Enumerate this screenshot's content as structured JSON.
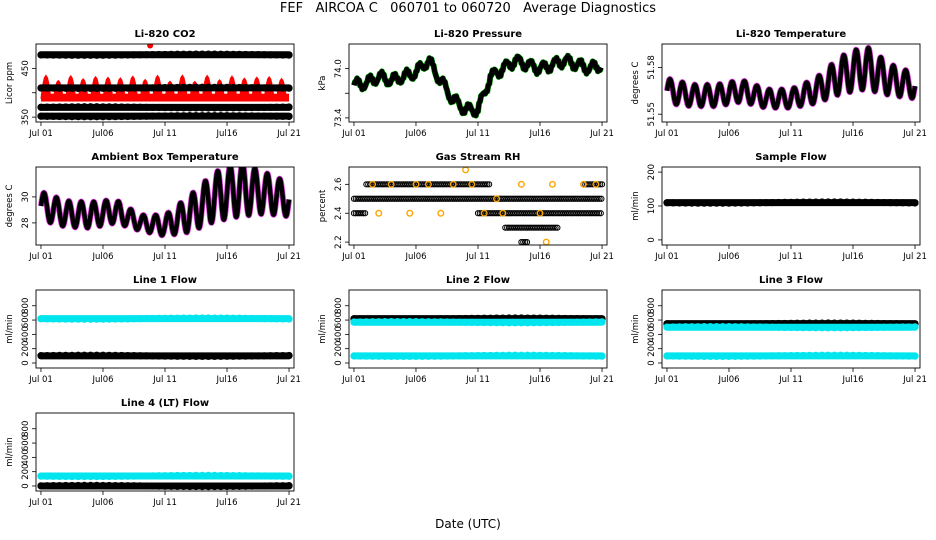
{
  "title": "FEF   AIRCOA C   060701 to 060720   Average Diagnostics",
  "xlabel": "Date (UTC)",
  "x_ticks": [
    "Jul 01",
    "Jul06",
    "Jul 11",
    "Jul16",
    "Jul 21"
  ],
  "x_tick_days": [
    1,
    6,
    11,
    16,
    21
  ],
  "colors": {
    "black": "#000000",
    "red": "#ff0000",
    "green": "#00aa00",
    "magenta": "#e040e0",
    "cyan": "#00e5ee",
    "orange": "#ffa500"
  },
  "chart_data": [
    {
      "type": "scatter",
      "title": "Li-820 CO2",
      "ylabel": "Licor ppm",
      "ylim": [
        340,
        500
      ],
      "yticks": [
        350,
        400,
        450
      ],
      "ytick_labels": [
        "350",
        "",
        "450"
      ],
      "series": [
        {
          "name": "calibration tank high",
          "color": "black",
          "kind": "flat",
          "level": 478
        },
        {
          "name": "sample",
          "color": "red",
          "kind": "diurnal",
          "base": 390,
          "amp": 40
        },
        {
          "name": "calibration tank mid",
          "color": "black",
          "kind": "flat",
          "level": 410
        },
        {
          "name": "calibration tank low",
          "color": "black",
          "kind": "flat",
          "level": 370
        },
        {
          "name": "calibration tank zero",
          "color": "black",
          "kind": "flat",
          "level": 352
        }
      ]
    },
    {
      "type": "line",
      "title": "Li-820 Pressure",
      "ylabel": "kPa",
      "ylim": [
        73.35,
        74.3
      ],
      "yticks": [
        73.4,
        73.7,
        74.0
      ],
      "ytick_labels": [
        "73.4",
        "",
        "74.0"
      ],
      "series": [
        {
          "name": "pressure",
          "color": "black",
          "kind": "trace",
          "accent": "green",
          "x": [
            1,
            2,
            3,
            4,
            5,
            6,
            7,
            8,
            9,
            10,
            11,
            12,
            13,
            14,
            15,
            16,
            17,
            18,
            19,
            20,
            21
          ],
          "y": [
            73.8,
            73.82,
            73.9,
            73.85,
            73.9,
            73.95,
            74.1,
            73.85,
            73.62,
            73.5,
            73.5,
            73.9,
            74.0,
            74.1,
            74.05,
            74.0,
            74.05,
            74.1,
            74.05,
            74.0,
            74.05
          ]
        }
      ]
    },
    {
      "type": "line",
      "title": "Li-820 Temperature",
      "ylabel": "degrees C",
      "ylim": [
        51.545,
        51.595
      ],
      "yticks": [
        51.55,
        51.58
      ],
      "ytick_labels": [
        "51.55",
        "51.58"
      ],
      "series": [
        {
          "name": "cell temperature",
          "color": "black",
          "kind": "osc",
          "accent": "magenta",
          "x": [
            1,
            3,
            5,
            7,
            9,
            11,
            13,
            15,
            17,
            19,
            21
          ],
          "y": [
            51.565,
            51.562,
            51.562,
            51.565,
            51.56,
            51.56,
            51.565,
            51.575,
            51.58,
            51.572,
            51.568
          ],
          "amp": [
            0.008,
            0.007,
            0.007,
            0.007,
            0.006,
            0.006,
            0.008,
            0.012,
            0.014,
            0.01,
            0.008
          ]
        }
      ]
    },
    {
      "type": "line",
      "title": "Ambient Box Temperature",
      "ylabel": "degrees C",
      "ylim": [
        26.3,
        32.3
      ],
      "yticks": [
        28,
        30
      ],
      "ytick_labels": [
        "28",
        "30"
      ],
      "series": [
        {
          "name": "box temperature",
          "color": "black",
          "kind": "osc",
          "accent": "magenta",
          "x": [
            1,
            3,
            5,
            7,
            9,
            11,
            13,
            15,
            17,
            19,
            21
          ],
          "y": [
            29.3,
            28.7,
            28.6,
            28.9,
            28.0,
            27.8,
            28.7,
            30.0,
            30.6,
            30.3,
            29.8
          ],
          "amp": [
            1.1,
            1.0,
            1.0,
            0.9,
            0.6,
            0.8,
            1.4,
            1.9,
            2.1,
            1.6,
            1.3
          ]
        }
      ]
    },
    {
      "type": "scatter",
      "title": "Gas Stream RH",
      "ylabel": "percent",
      "ylim": [
        2.18,
        2.72
      ],
      "yticks": [
        2.2,
        2.4,
        2.6
      ],
      "ytick_labels": [
        "2.2",
        "2.4",
        "2.6"
      ],
      "series": [
        {
          "name": "RH 2.6",
          "color": "black",
          "kind": "segments",
          "level": 2.6,
          "segs": [
            [
              2,
              12
            ],
            [
              19.5,
              21
            ]
          ]
        },
        {
          "name": "RH 2.5",
          "color": "black",
          "kind": "segments",
          "level": 2.5,
          "segs": [
            [
              1,
              21
            ]
          ]
        },
        {
          "name": "RH 2.4",
          "color": "black",
          "kind": "segments",
          "level": 2.4,
          "segs": [
            [
              1,
              2
            ],
            [
              11,
              21
            ]
          ]
        },
        {
          "name": "RH 2.3",
          "color": "black",
          "kind": "segments",
          "level": 2.3,
          "segs": [
            [
              13.2,
              17.5
            ]
          ]
        },
        {
          "name": "RH 2.2",
          "color": "black",
          "kind": "segments",
          "level": 2.2,
          "segs": [
            [
              14.5,
              15
            ]
          ]
        },
        {
          "name": "outliers",
          "color": "orange",
          "kind": "points",
          "x": [
            2.5,
            3,
            4,
            5.5,
            6,
            7,
            8,
            9,
            10.5,
            11.5,
            12.5,
            13,
            14.5,
            16,
            16.5,
            17,
            19.5,
            20.5,
            10
          ],
          "y": [
            2.6,
            2.4,
            2.6,
            2.4,
            2.6,
            2.6,
            2.4,
            2.6,
            2.6,
            2.4,
            2.5,
            2.4,
            2.6,
            2.4,
            2.2,
            2.6,
            2.6,
            2.6,
            2.7
          ]
        }
      ]
    },
    {
      "type": "scatter",
      "title": "Sample Flow",
      "ylabel": "ml/min",
      "ylim": [
        -15,
        215
      ],
      "yticks": [
        0,
        100,
        200
      ],
      "ytick_labels": [
        "0",
        "100",
        "200"
      ],
      "series": [
        {
          "name": "sample flow",
          "color": "black",
          "kind": "flat",
          "level": 110
        }
      ]
    },
    {
      "type": "scatter",
      "title": "Line 1 Flow",
      "ylabel": "ml/min",
      "ylim": [
        -70,
        1020
      ],
      "yticks": [
        0,
        200,
        400,
        600,
        800
      ],
      "ytick_labels": [
        "0",
        "200",
        "400",
        "600",
        "800"
      ],
      "series": [
        {
          "name": "line 1 sample",
          "color": "cyan",
          "kind": "flat",
          "level": 620
        },
        {
          "name": "line 1 idle",
          "color": "black",
          "kind": "flat",
          "level": 100
        }
      ]
    },
    {
      "type": "scatter",
      "title": "Line 2 Flow",
      "ylabel": "ml/min",
      "ylim": [
        -70,
        1020
      ],
      "yticks": [
        0,
        200,
        400,
        600,
        800
      ],
      "ytick_labels": [
        "0",
        "200",
        "400",
        "600",
        "800"
      ],
      "series": [
        {
          "name": "line 2 sample",
          "color": "black",
          "kind": "flat",
          "level": 620
        },
        {
          "name": "line 2 alt",
          "color": "cyan",
          "kind": "flat",
          "level": 570
        },
        {
          "name": "line 2 idle",
          "color": "cyan",
          "kind": "flat",
          "level": 100
        }
      ]
    },
    {
      "type": "scatter",
      "title": "Line 3 Flow",
      "ylabel": "ml/min",
      "ylim": [
        -70,
        1020
      ],
      "yticks": [
        0,
        200,
        400,
        600,
        800
      ],
      "ytick_labels": [
        "0",
        "200",
        "400",
        "600",
        "800"
      ],
      "series": [
        {
          "name": "line 3 sample",
          "color": "black",
          "kind": "flat",
          "level": 550
        },
        {
          "name": "line 3 alt",
          "color": "cyan",
          "kind": "flat",
          "level": 500
        },
        {
          "name": "line 3 idle",
          "color": "cyan",
          "kind": "flat",
          "level": 100
        }
      ]
    },
    {
      "type": "scatter",
      "title": "Line 4 (LT) Flow",
      "ylabel": "ml/min",
      "ylim": [
        -70,
        1020
      ],
      "yticks": [
        0,
        200,
        400,
        600,
        800
      ],
      "ytick_labels": [
        "0",
        "200",
        "400",
        "600",
        "800"
      ],
      "series": [
        {
          "name": "line 4 flow",
          "color": "cyan",
          "kind": "flat",
          "level": 140
        },
        {
          "name": "line 4 idle",
          "color": "black",
          "kind": "flat",
          "level": 0
        }
      ]
    }
  ]
}
